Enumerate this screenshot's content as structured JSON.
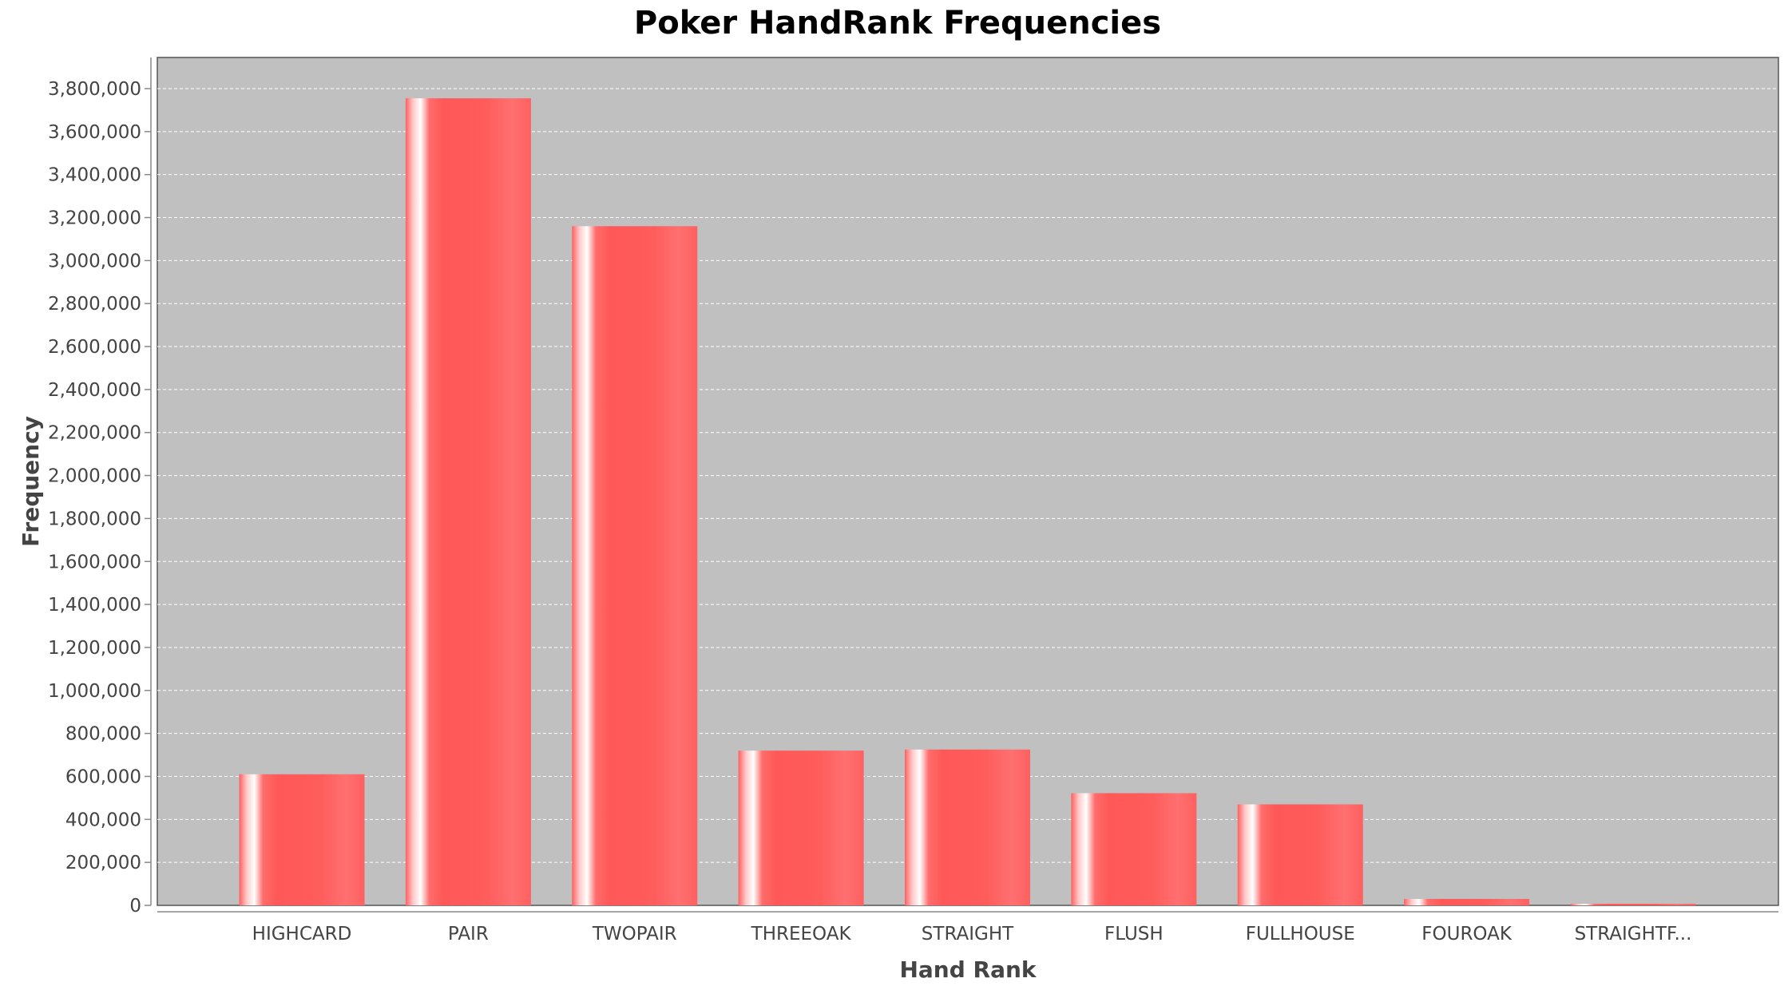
{
  "chart_data": {
    "type": "bar",
    "title": "Poker HandRank Frequencies",
    "xlabel": "Hand Rank",
    "ylabel": "Frequency",
    "categories": [
      "HIGHCARD",
      "PAIR",
      "TWOPAIR",
      "THREEOAK",
      "STRAIGHT",
      "FLUSH",
      "FULLHOUSE",
      "FOUROAK",
      "STRAIGHTF..."
    ],
    "values": [
      610000,
      3755000,
      3160000,
      720000,
      725000,
      522000,
      470000,
      30000,
      5000
    ],
    "ylim": [
      0,
      3800000
    ],
    "yticks": [
      0,
      200000,
      400000,
      600000,
      800000,
      1000000,
      1200000,
      1400000,
      1600000,
      1800000,
      2000000,
      2200000,
      2400000,
      2600000,
      2800000,
      3000000,
      3200000,
      3400000,
      3600000,
      3800000
    ],
    "ytick_labels": [
      "0",
      "200,000",
      "400,000",
      "600,000",
      "800,000",
      "1,000,000",
      "1,200,000",
      "1,400,000",
      "1,600,000",
      "1,800,000",
      "2,000,000",
      "2,200,000",
      "2,400,000",
      "2,600,000",
      "2,800,000",
      "3,000,000",
      "3,200,000",
      "3,400,000",
      "3,600,000",
      "3,800,000"
    ],
    "grid": true,
    "legend": "none",
    "colors": {
      "bar": "#ff5555",
      "bar_highlight": "#ffffff",
      "plot_background": "#c0c0c0",
      "gridline": "#ffffff",
      "page_background": "#ffffff"
    }
  }
}
